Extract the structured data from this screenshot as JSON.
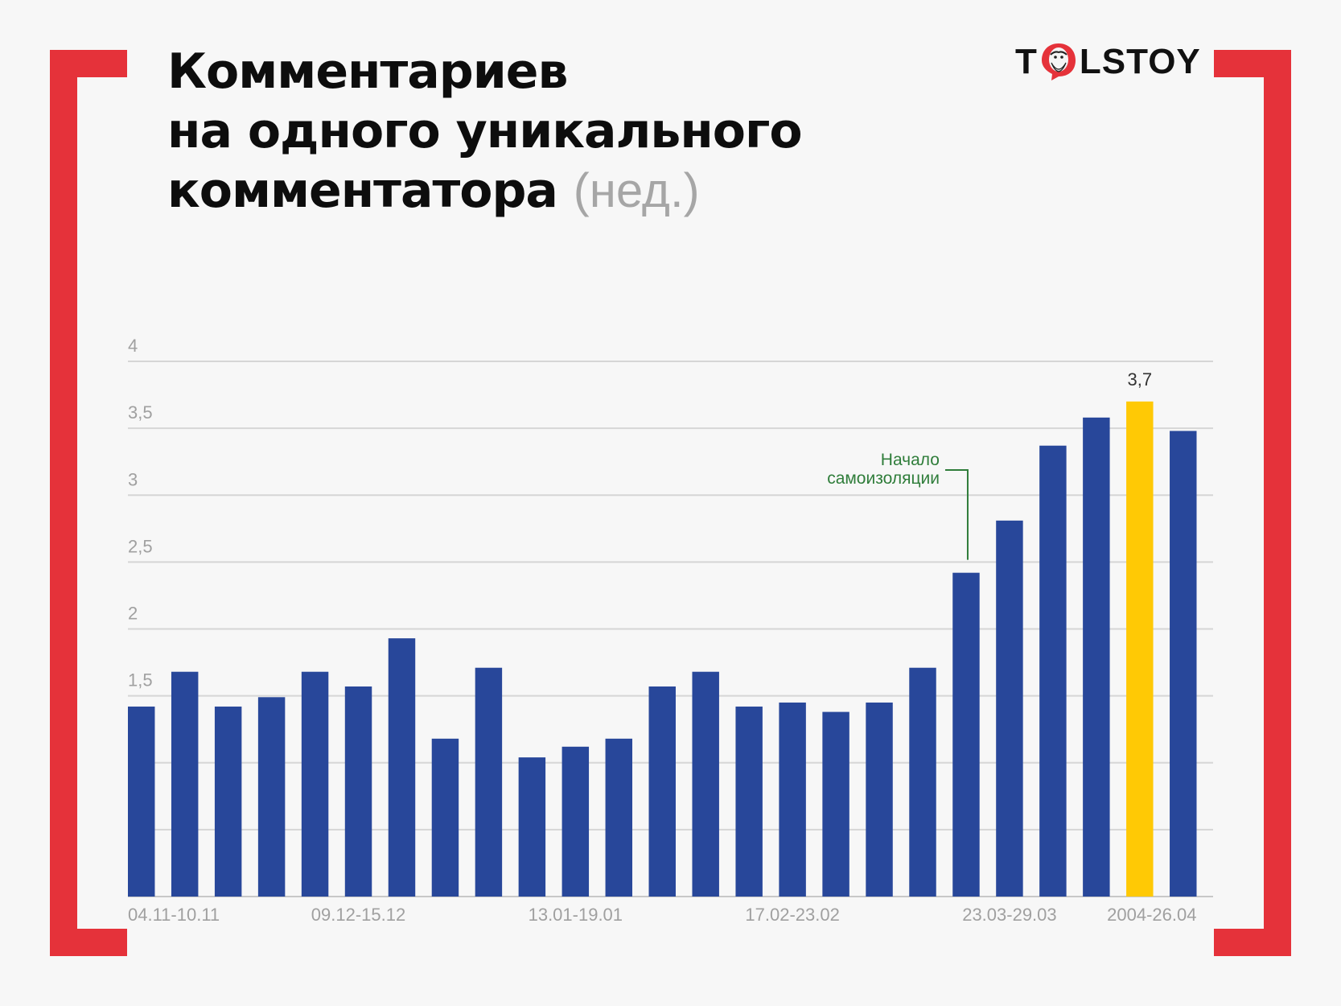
{
  "title": {
    "lines": [
      "Комментариев",
      "на одного уникального",
      "комментатора"
    ],
    "unit": "(нед.)"
  },
  "logo": {
    "left": "T",
    "right": "LSTOY"
  },
  "colors": {
    "bar": "#28479a",
    "highlight": "#ffc905",
    "frame": "#e5323a",
    "annotation": "#2f7d3a",
    "grid": "#d6d6d6"
  },
  "chart_data": {
    "type": "bar",
    "x_tick_labels": [
      "04.11-10.11",
      "09.12-15.12",
      "13.01-19.01",
      "17.02-23.02",
      "23.03-29.03",
      "2004-26.04"
    ],
    "x_tick_index": [
      0,
      5,
      10,
      15,
      20,
      25
    ],
    "values": [
      1.42,
      1.68,
      1.42,
      1.49,
      1.68,
      1.57,
      1.93,
      1.18,
      1.71,
      1.04,
      1.12,
      1.18,
      1.57,
      1.68,
      1.42,
      1.45,
      1.38,
      1.45,
      1.71,
      2.42,
      2.81,
      3.37,
      3.58,
      3.7,
      3.48
    ],
    "highlight_index": 23,
    "highlight_label": "3,7",
    "ylim": [
      0,
      4
    ],
    "y_ticks": [
      1.5,
      2,
      2.5,
      3,
      3.5,
      4
    ],
    "y_tick_labels": [
      "1,5",
      "2",
      "2,5",
      "3",
      "3,5",
      "4"
    ],
    "grid_levels": [
      0.5,
      1,
      1.5,
      2,
      2.5,
      3,
      3.5,
      4
    ],
    "grid": true,
    "annotation": {
      "lines": [
        "Начало",
        "самоизоляции"
      ],
      "bar_index": 19
    }
  }
}
